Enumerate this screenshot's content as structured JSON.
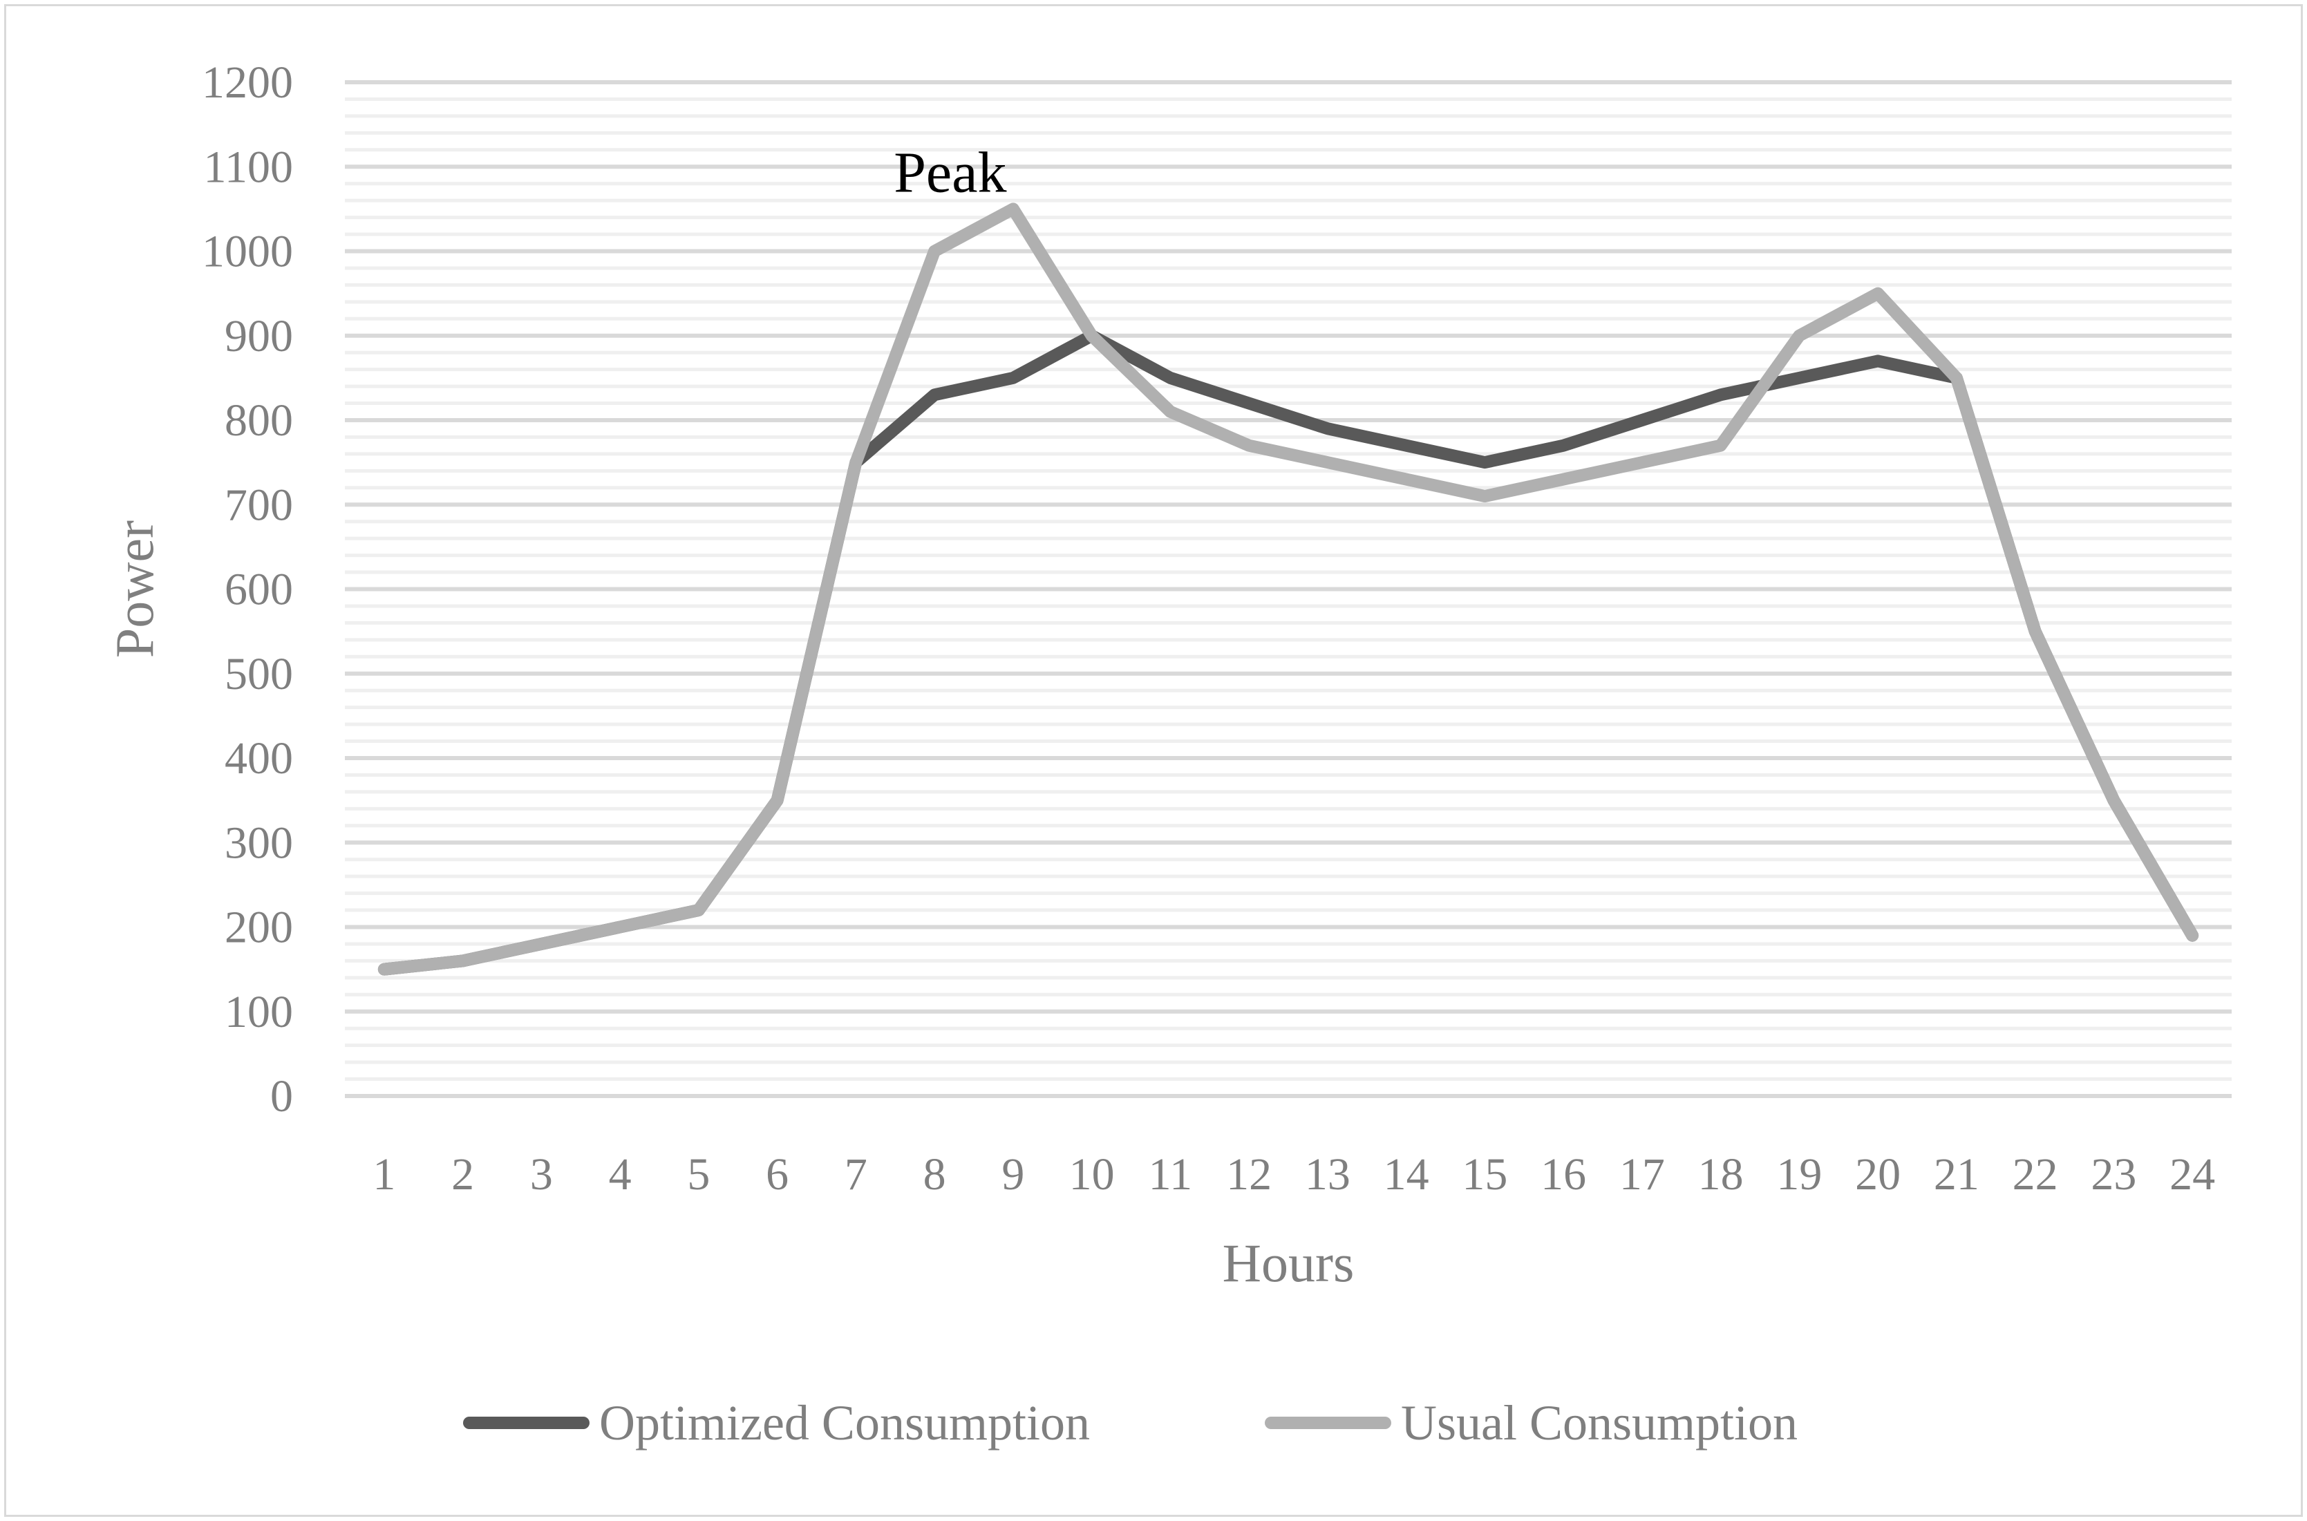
{
  "chart_data": {
    "type": "line",
    "title": "",
    "xlabel": "Hours",
    "ylabel": "Power",
    "x": [
      1,
      2,
      3,
      4,
      5,
      6,
      7,
      8,
      9,
      10,
      11,
      12,
      13,
      14,
      15,
      16,
      17,
      18,
      19,
      20,
      21,
      22,
      23,
      24
    ],
    "ylim": [
      0,
      1200
    ],
    "yticks": [
      0,
      100,
      200,
      300,
      400,
      500,
      600,
      700,
      800,
      900,
      1000,
      1100,
      1200
    ],
    "grid": true,
    "legend_position": "bottom",
    "series": [
      {
        "name": "Optimized Consumption",
        "color": "#595959",
        "values": [
          150,
          160,
          180,
          200,
          220,
          350,
          750,
          830,
          850,
          900,
          850,
          820,
          790,
          770,
          750,
          770,
          800,
          830,
          850,
          870,
          850,
          550,
          350,
          190
        ]
      },
      {
        "name": "Usual Consumption",
        "color": "#b0b0b0",
        "values": [
          150,
          160,
          180,
          200,
          220,
          350,
          750,
          1000,
          1050,
          900,
          810,
          770,
          750,
          730,
          710,
          730,
          750,
          770,
          900,
          950,
          850,
          550,
          350,
          190
        ]
      }
    ],
    "annotations": [
      {
        "text": "Peak",
        "x": 8.2,
        "y": 1095
      }
    ]
  }
}
